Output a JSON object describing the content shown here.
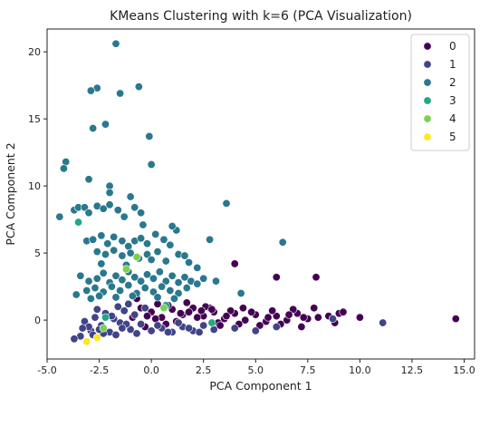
{
  "chart_data": {
    "type": "scatter",
    "title": "KMeans Clustering with k=6 (PCA Visualization)",
    "xlabel": "PCA Component 1",
    "ylabel": "PCA Component 2",
    "xlim": [
      -5.0,
      15.5
    ],
    "ylim": [
      -2.9,
      21.7
    ],
    "x_ticks": [
      -5.0,
      -2.5,
      0.0,
      2.5,
      5.0,
      7.5,
      10.0,
      12.5,
      15.0
    ],
    "x_tick_labels": [
      "-5.0",
      "-2.5",
      "0.0",
      "2.5",
      "5.0",
      "7.5",
      "10.0",
      "12.5",
      "15.0"
    ],
    "y_ticks": [
      0,
      5,
      10,
      15,
      20
    ],
    "y_tick_labels": [
      "0",
      "5",
      "10",
      "15",
      "20"
    ],
    "grid": false,
    "legend_position": "top-right",
    "colors": {
      "0": "#440154",
      "1": "#414487",
      "2": "#2a788e",
      "3": "#22a884",
      "4": "#7ad151",
      "5": "#fde725"
    },
    "series": [
      {
        "name": "0",
        "points": [
          [
            -0.5,
            0.9
          ],
          [
            0.0,
            0.6
          ],
          [
            0.5,
            0.2
          ],
          [
            1.0,
            0.8
          ],
          [
            1.5,
            0.4
          ],
          [
            2.0,
            0.9
          ],
          [
            2.5,
            0.3
          ],
          [
            3.0,
            0.6
          ],
          [
            3.5,
            0.1
          ],
          [
            4.0,
            0.5
          ],
          [
            4.5,
            0.0
          ],
          [
            5.0,
            0.4
          ],
          [
            5.5,
            -0.1
          ],
          [
            6.0,
            0.3
          ],
          [
            6.5,
            0.0
          ],
          [
            7.0,
            0.5
          ],
          [
            7.5,
            0.1
          ],
          [
            0.2,
            0.1
          ],
          [
            1.2,
            -0.1
          ],
          [
            2.2,
            0.2
          ],
          [
            3.2,
            -0.2
          ],
          [
            4.2,
            -0.3
          ],
          [
            5.2,
            -0.4
          ],
          [
            6.2,
            -0.3
          ],
          [
            -0.2,
            0.3
          ],
          [
            0.8,
            1.1
          ],
          [
            1.8,
            0.6
          ],
          [
            2.8,
            0.9
          ],
          [
            3.8,
            0.7
          ],
          [
            4.8,
            0.6
          ],
          [
            5.8,
            0.7
          ],
          [
            6.8,
            0.8
          ],
          [
            7.8,
            0.9
          ],
          [
            8.0,
            0.2
          ],
          [
            8.5,
            0.3
          ],
          [
            9.0,
            0.5
          ],
          [
            9.2,
            0.6
          ],
          [
            8.8,
            -0.2
          ],
          [
            10.0,
            0.2
          ],
          [
            14.6,
            0.1
          ],
          [
            7.2,
            -0.5
          ],
          [
            6.0,
            3.2
          ],
          [
            7.9,
            3.2
          ],
          [
            4.0,
            4.2
          ],
          [
            -0.7,
            1.6
          ],
          [
            0.3,
            1.2
          ],
          [
            1.7,
            1.3
          ],
          [
            2.6,
            1.0
          ],
          [
            -0.9,
            0.2
          ],
          [
            2.9,
            0.8
          ],
          [
            3.3,
            -0.4
          ],
          [
            4.4,
            0.9
          ],
          [
            5.6,
            0.2
          ],
          [
            6.6,
            0.4
          ],
          [
            7.3,
            0.2
          ],
          [
            -0.3,
            -0.5
          ],
          [
            0.7,
            -0.3
          ],
          [
            1.4,
            0.5
          ],
          [
            2.4,
            0.7
          ],
          [
            3.6,
            0.3
          ]
        ]
      },
      {
        "name": "1",
        "points": [
          [
            -2.9,
            -0.8
          ],
          [
            -2.4,
            -0.4
          ],
          [
            -2.0,
            -0.9
          ],
          [
            -1.5,
            -0.2
          ],
          [
            -1.0,
            -0.7
          ],
          [
            -0.5,
            -0.3
          ],
          [
            0.0,
            -0.8
          ],
          [
            0.5,
            -0.6
          ],
          [
            1.0,
            -0.9
          ],
          [
            1.5,
            -0.5
          ],
          [
            2.0,
            -0.8
          ],
          [
            2.5,
            -0.4
          ],
          [
            3.0,
            -0.7
          ],
          [
            -2.7,
            0.2
          ],
          [
            -2.2,
            0.5
          ],
          [
            -1.8,
            0.1
          ],
          [
            -1.3,
            0.7
          ],
          [
            -0.8,
            0.4
          ],
          [
            -0.3,
            0.9
          ],
          [
            -3.2,
            -0.1
          ],
          [
            -3.4,
            -1.2
          ],
          [
            -3.0,
            -0.5
          ],
          [
            -2.6,
            0.8
          ],
          [
            -1.6,
            1.0
          ],
          [
            -1.1,
            1.2
          ],
          [
            4.0,
            -0.6
          ],
          [
            5.0,
            -0.8
          ],
          [
            6.0,
            -0.5
          ],
          [
            8.7,
            0.1
          ],
          [
            11.1,
            -0.2
          ],
          [
            -2.8,
            -1.1
          ],
          [
            -2.3,
            -1.0
          ],
          [
            -1.7,
            -1.1
          ],
          [
            -1.2,
            -0.3
          ],
          [
            -0.7,
            -1.0
          ],
          [
            0.3,
            -0.4
          ],
          [
            0.8,
            -0.9
          ],
          [
            1.3,
            -0.2
          ],
          [
            1.8,
            -0.6
          ],
          [
            2.3,
            -0.9
          ],
          [
            -3.7,
            -1.4
          ],
          [
            -3.3,
            -0.6
          ],
          [
            -2.5,
            -0.7
          ],
          [
            -1.9,
            0.3
          ],
          [
            -1.4,
            -0.6
          ]
        ]
      },
      {
        "name": "2",
        "points": [
          [
            -1.7,
            20.6
          ],
          [
            -0.6,
            17.4
          ],
          [
            -2.6,
            17.3
          ],
          [
            -2.9,
            17.1
          ],
          [
            -1.5,
            16.9
          ],
          [
            -2.2,
            14.6
          ],
          [
            -2.8,
            14.3
          ],
          [
            -0.1,
            13.7
          ],
          [
            -4.1,
            11.8
          ],
          [
            -4.2,
            11.3
          ],
          [
            0.0,
            11.6
          ],
          [
            -3.0,
            10.5
          ],
          [
            -2.0,
            10.0
          ],
          [
            -2.0,
            9.5
          ],
          [
            -1.0,
            9.2
          ],
          [
            -0.5,
            8.0
          ],
          [
            3.6,
            8.7
          ],
          [
            -4.4,
            7.7
          ],
          [
            -3.7,
            8.2
          ],
          [
            -3.5,
            8.4
          ],
          [
            -3.2,
            8.4
          ],
          [
            -3.0,
            8.0
          ],
          [
            -2.6,
            8.5
          ],
          [
            -2.3,
            8.3
          ],
          [
            -2.0,
            8.6
          ],
          [
            -1.6,
            8.2
          ],
          [
            -1.3,
            7.7
          ],
          [
            -0.8,
            8.4
          ],
          [
            -3.1,
            5.9
          ],
          [
            -2.8,
            6.0
          ],
          [
            -2.4,
            6.3
          ],
          [
            -2.1,
            5.7
          ],
          [
            -1.8,
            6.2
          ],
          [
            -1.4,
            5.9
          ],
          [
            -1.1,
            5.5
          ],
          [
            -0.8,
            5.9
          ],
          [
            -0.5,
            6.1
          ],
          [
            -0.2,
            5.7
          ],
          [
            0.2,
            6.4
          ],
          [
            0.6,
            6.0
          ],
          [
            0.9,
            5.6
          ],
          [
            1.2,
            6.7
          ],
          [
            2.8,
            6.0
          ],
          [
            6.3,
            5.8
          ],
          [
            -2.6,
            5.1
          ],
          [
            -2.2,
            4.9
          ],
          [
            -1.8,
            5.2
          ],
          [
            -1.4,
            4.8
          ],
          [
            -1.0,
            5.0
          ],
          [
            -0.6,
            4.6
          ],
          [
            -0.2,
            4.9
          ],
          [
            0.3,
            5.1
          ],
          [
            0.7,
            4.4
          ],
          [
            1.3,
            4.9
          ],
          [
            1.8,
            4.3
          ],
          [
            2.2,
            3.9
          ],
          [
            -3.4,
            3.3
          ],
          [
            -3.0,
            2.9
          ],
          [
            -2.6,
            3.1
          ],
          [
            -2.3,
            3.5
          ],
          [
            -2.0,
            2.8
          ],
          [
            -1.7,
            3.3
          ],
          [
            -1.4,
            3.0
          ],
          [
            -1.1,
            3.6
          ],
          [
            -0.8,
            3.2
          ],
          [
            -0.5,
            2.9
          ],
          [
            -0.2,
            3.4
          ],
          [
            0.1,
            3.1
          ],
          [
            0.4,
            3.6
          ],
          [
            0.7,
            2.9
          ],
          [
            1.0,
            3.3
          ],
          [
            1.3,
            2.8
          ],
          [
            1.6,
            3.2
          ],
          [
            1.9,
            2.9
          ],
          [
            2.2,
            2.7
          ],
          [
            2.5,
            3.1
          ],
          [
            -3.1,
            2.2
          ],
          [
            -2.7,
            2.4
          ],
          [
            -2.3,
            2.1
          ],
          [
            -1.9,
            2.5
          ],
          [
            -1.5,
            2.2
          ],
          [
            -1.1,
            2.6
          ],
          [
            -0.7,
            2.0
          ],
          [
            -0.3,
            2.4
          ],
          [
            0.1,
            2.1
          ],
          [
            0.5,
            2.5
          ],
          [
            0.9,
            2.2
          ],
          [
            1.3,
            2.0
          ],
          [
            1.7,
            2.4
          ],
          [
            -3.6,
            1.9
          ],
          [
            -2.9,
            1.6
          ],
          [
            -2.5,
            1.8
          ],
          [
            -1.7,
            1.7
          ],
          [
            -0.9,
            1.8
          ],
          [
            0.3,
            1.7
          ],
          [
            1.1,
            1.6
          ],
          [
            4.3,
            2.0
          ],
          [
            3.1,
            2.9
          ],
          [
            -2.4,
            4.2
          ],
          [
            -1.2,
            4.1
          ],
          [
            0.0,
            4.5
          ],
          [
            1.6,
            4.8
          ],
          [
            1.0,
            7.0
          ],
          [
            -0.4,
            7.1
          ]
        ]
      },
      {
        "name": "3",
        "points": [
          [
            -3.5,
            7.3
          ],
          [
            0.7,
            1.1
          ],
          [
            2.9,
            -0.2
          ],
          [
            -2.2,
            0.2
          ]
        ]
      },
      {
        "name": "4",
        "points": [
          [
            -0.7,
            4.7
          ],
          [
            -1.2,
            3.8
          ],
          [
            -2.3,
            -0.6
          ],
          [
            0.6,
            0.9
          ]
        ]
      },
      {
        "name": "5",
        "points": [
          [
            -3.1,
            -1.6
          ],
          [
            -2.6,
            -1.3
          ]
        ]
      }
    ]
  }
}
